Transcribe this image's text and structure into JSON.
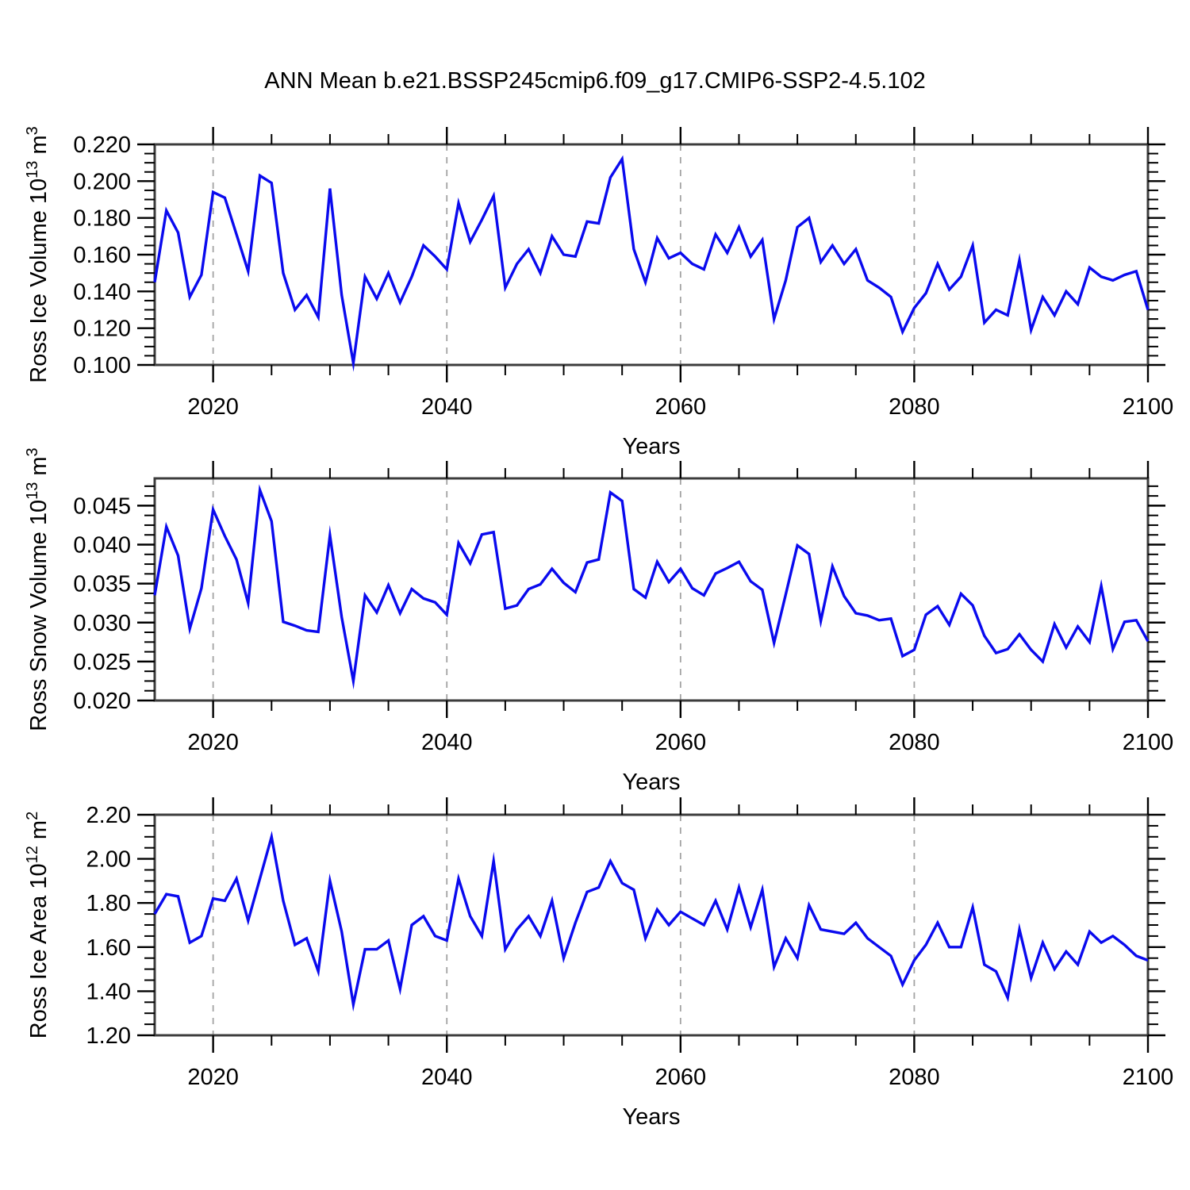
{
  "title": "ANN Mean b.e21.BSSP245cmip6.f09_g17.CMIP6-SSP2-4.5.102",
  "colors": {
    "line": "#0a0aee",
    "grid": "#a3a3a3",
    "frame": "#3c3c3c",
    "tick": "#000000",
    "text": "#000000",
    "background": "#ffffff"
  },
  "chart_data": [
    {
      "type": "line",
      "name": "ross-ice-volume",
      "title": "",
      "xlabel": "Years",
      "ylabel_text": "Ross Ice Volume 10^13 m^3",
      "ylabel_segments": [
        [
          "t",
          "Ross Ice Volume 10"
        ],
        [
          "sup",
          "13"
        ],
        [
          "t",
          " m"
        ],
        [
          "sup",
          "3"
        ]
      ],
      "xlim": [
        2015,
        2100
      ],
      "ylim": [
        0.1,
        0.22
      ],
      "x_major_ticks": [
        2020,
        2040,
        2060,
        2080,
        2100
      ],
      "x_minor_step": 5,
      "x_gridlines": [
        2020,
        2040,
        2060,
        2080
      ],
      "y_major_step": 0.02,
      "y_minor_divisions": 4,
      "y_tick_decimals": 3,
      "grid_style": "dashed-vertical",
      "legend": "none",
      "x_start": 2015,
      "x_step": 1,
      "values": [
        0.145,
        0.184,
        0.172,
        0.137,
        0.149,
        0.194,
        0.191,
        0.171,
        0.151,
        0.203,
        0.199,
        0.15,
        0.13,
        0.138,
        0.126,
        0.196,
        0.138,
        0.101,
        0.148,
        0.136,
        0.15,
        0.134,
        0.148,
        0.165,
        0.159,
        0.152,
        0.188,
        0.167,
        0.179,
        0.192,
        0.142,
        0.155,
        0.163,
        0.15,
        0.17,
        0.16,
        0.159,
        0.178,
        0.177,
        0.202,
        0.212,
        0.163,
        0.145,
        0.169,
        0.158,
        0.161,
        0.155,
        0.152,
        0.171,
        0.161,
        0.175,
        0.159,
        0.168,
        0.125,
        0.146,
        0.175,
        0.18,
        0.156,
        0.165,
        0.155,
        0.163,
        0.146,
        0.142,
        0.137,
        0.118,
        0.131,
        0.139,
        0.155,
        0.141,
        0.148,
        0.165,
        0.123,
        0.13,
        0.127,
        0.157,
        0.119,
        0.137,
        0.127,
        0.14,
        0.133,
        0.153,
        0.148,
        0.146,
        0.149,
        0.151,
        0.13
      ]
    },
    {
      "type": "line",
      "name": "ross-snow-volume",
      "title": "",
      "xlabel": "Years",
      "ylabel_text": "Ross Snow Volume 10^13 m^3",
      "ylabel_segments": [
        [
          "t",
          "Ross Snow Volume 10"
        ],
        [
          "sup",
          "13"
        ],
        [
          "t",
          " m"
        ],
        [
          "sup",
          "3"
        ]
      ],
      "xlim": [
        2015,
        2100
      ],
      "ylim": [
        0.02,
        0.0485
      ],
      "x_major_ticks": [
        2020,
        2040,
        2060,
        2080,
        2100
      ],
      "x_minor_step": 5,
      "x_gridlines": [
        2020,
        2040,
        2060,
        2080
      ],
      "y_major_step": 0.005,
      "y_minor_divisions": 4,
      "y_tick_decimals": 3,
      "grid_style": "dashed-vertical",
      "legend": "none",
      "x_start": 2015,
      "x_step": 1,
      "values": [
        0.0335,
        0.0423,
        0.0386,
        0.0292,
        0.0344,
        0.0445,
        0.0411,
        0.0381,
        0.0325,
        0.047,
        0.043,
        0.0301,
        0.0296,
        0.029,
        0.0288,
        0.0412,
        0.0307,
        0.0225,
        0.0335,
        0.0313,
        0.0348,
        0.0312,
        0.0343,
        0.0331,
        0.0326,
        0.031,
        0.0402,
        0.0376,
        0.0413,
        0.0416,
        0.0318,
        0.0322,
        0.0343,
        0.0349,
        0.0369,
        0.0351,
        0.0339,
        0.0377,
        0.0381,
        0.0467,
        0.0456,
        0.0343,
        0.0332,
        0.0378,
        0.0352,
        0.0369,
        0.0344,
        0.0335,
        0.0363,
        0.037,
        0.0378,
        0.0353,
        0.0342,
        0.0274,
        0.0336,
        0.0399,
        0.0388,
        0.0302,
        0.0372,
        0.0334,
        0.0312,
        0.0309,
        0.0303,
        0.0305,
        0.0257,
        0.0265,
        0.031,
        0.0321,
        0.0297,
        0.0337,
        0.0322,
        0.0283,
        0.0261,
        0.0266,
        0.0285,
        0.0265,
        0.025,
        0.0298,
        0.0268,
        0.0295,
        0.0275,
        0.0347,
        0.0266,
        0.0301,
        0.0303,
        0.0276
      ]
    },
    {
      "type": "line",
      "name": "ross-ice-area",
      "title": "",
      "xlabel": "Years",
      "ylabel_text": "Ross Ice Area 10^12 m^2",
      "ylabel_segments": [
        [
          "t",
          "Ross Ice Area 10"
        ],
        [
          "sup",
          "12"
        ],
        [
          "t",
          " m"
        ],
        [
          "sup",
          "2"
        ]
      ],
      "xlim": [
        2015,
        2100
      ],
      "ylim": [
        1.2,
        2.2
      ],
      "x_major_ticks": [
        2020,
        2040,
        2060,
        2080,
        2100
      ],
      "x_minor_step": 5,
      "x_gridlines": [
        2020,
        2040,
        2060,
        2080
      ],
      "y_major_step": 0.2,
      "y_minor_divisions": 4,
      "y_tick_decimals": 2,
      "grid_style": "dashed-vertical",
      "legend": "none",
      "x_start": 2015,
      "x_step": 1,
      "values": [
        1.75,
        1.84,
        1.83,
        1.62,
        1.65,
        1.82,
        1.81,
        1.91,
        1.72,
        1.91,
        2.1,
        1.81,
        1.61,
        1.64,
        1.49,
        1.9,
        1.67,
        1.34,
        1.59,
        1.59,
        1.63,
        1.41,
        1.7,
        1.74,
        1.65,
        1.63,
        1.91,
        1.74,
        1.65,
        1.99,
        1.59,
        1.68,
        1.74,
        1.65,
        1.81,
        1.55,
        1.71,
        1.85,
        1.87,
        1.99,
        1.89,
        1.86,
        1.64,
        1.77,
        1.7,
        1.76,
        1.73,
        1.7,
        1.81,
        1.68,
        1.87,
        1.69,
        1.86,
        1.51,
        1.64,
        1.55,
        1.79,
        1.68,
        1.67,
        1.66,
        1.71,
        1.64,
        1.6,
        1.56,
        1.43,
        1.54,
        1.61,
        1.71,
        1.6,
        1.6,
        1.78,
        1.52,
        1.49,
        1.37,
        1.68,
        1.46,
        1.62,
        1.5,
        1.58,
        1.52,
        1.67,
        1.62,
        1.65,
        1.61,
        1.56,
        1.54
      ]
    }
  ]
}
